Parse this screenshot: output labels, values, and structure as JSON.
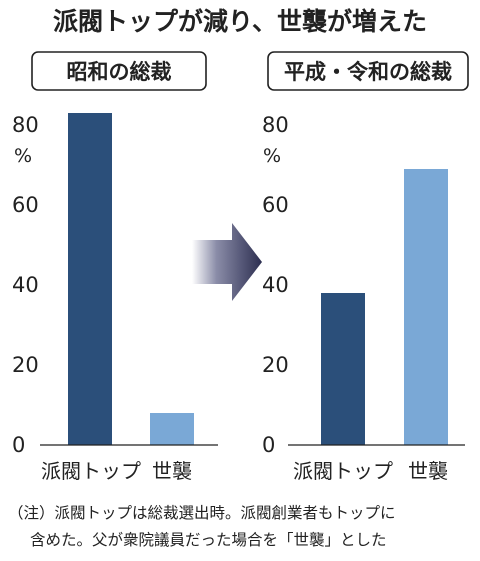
{
  "title": "派閥トップが減り、世襲が増えた",
  "note_lines": [
    "（注）派閥トップは総裁選出時。派閥創業者もトップに",
    "含めた。父が衆院議員だった場合を「世襲」とした"
  ],
  "colors": {
    "派閥トップ": "#2b4f7a",
    "世襲": "#7aa8d6",
    "arrow": "#34365a"
  },
  "icons": {
    "transition": "right-arrow-icon"
  },
  "chart_data": [
    {
      "type": "bar",
      "title": "昭和の総裁",
      "categories": [
        "派閥トップ",
        "世襲"
      ],
      "values": [
        83,
        8
      ],
      "ylim": [
        0,
        80
      ],
      "yticks": [
        0,
        20,
        40,
        60,
        80
      ],
      "yunit": "%",
      "grid": false
    },
    {
      "type": "bar",
      "title": "平成・令和の総裁",
      "categories": [
        "派閥トップ",
        "世襲"
      ],
      "values": [
        38,
        69
      ],
      "ylim": [
        0,
        80
      ],
      "yticks": [
        0,
        20,
        40,
        60,
        80
      ],
      "yunit": "%",
      "grid": false
    }
  ]
}
